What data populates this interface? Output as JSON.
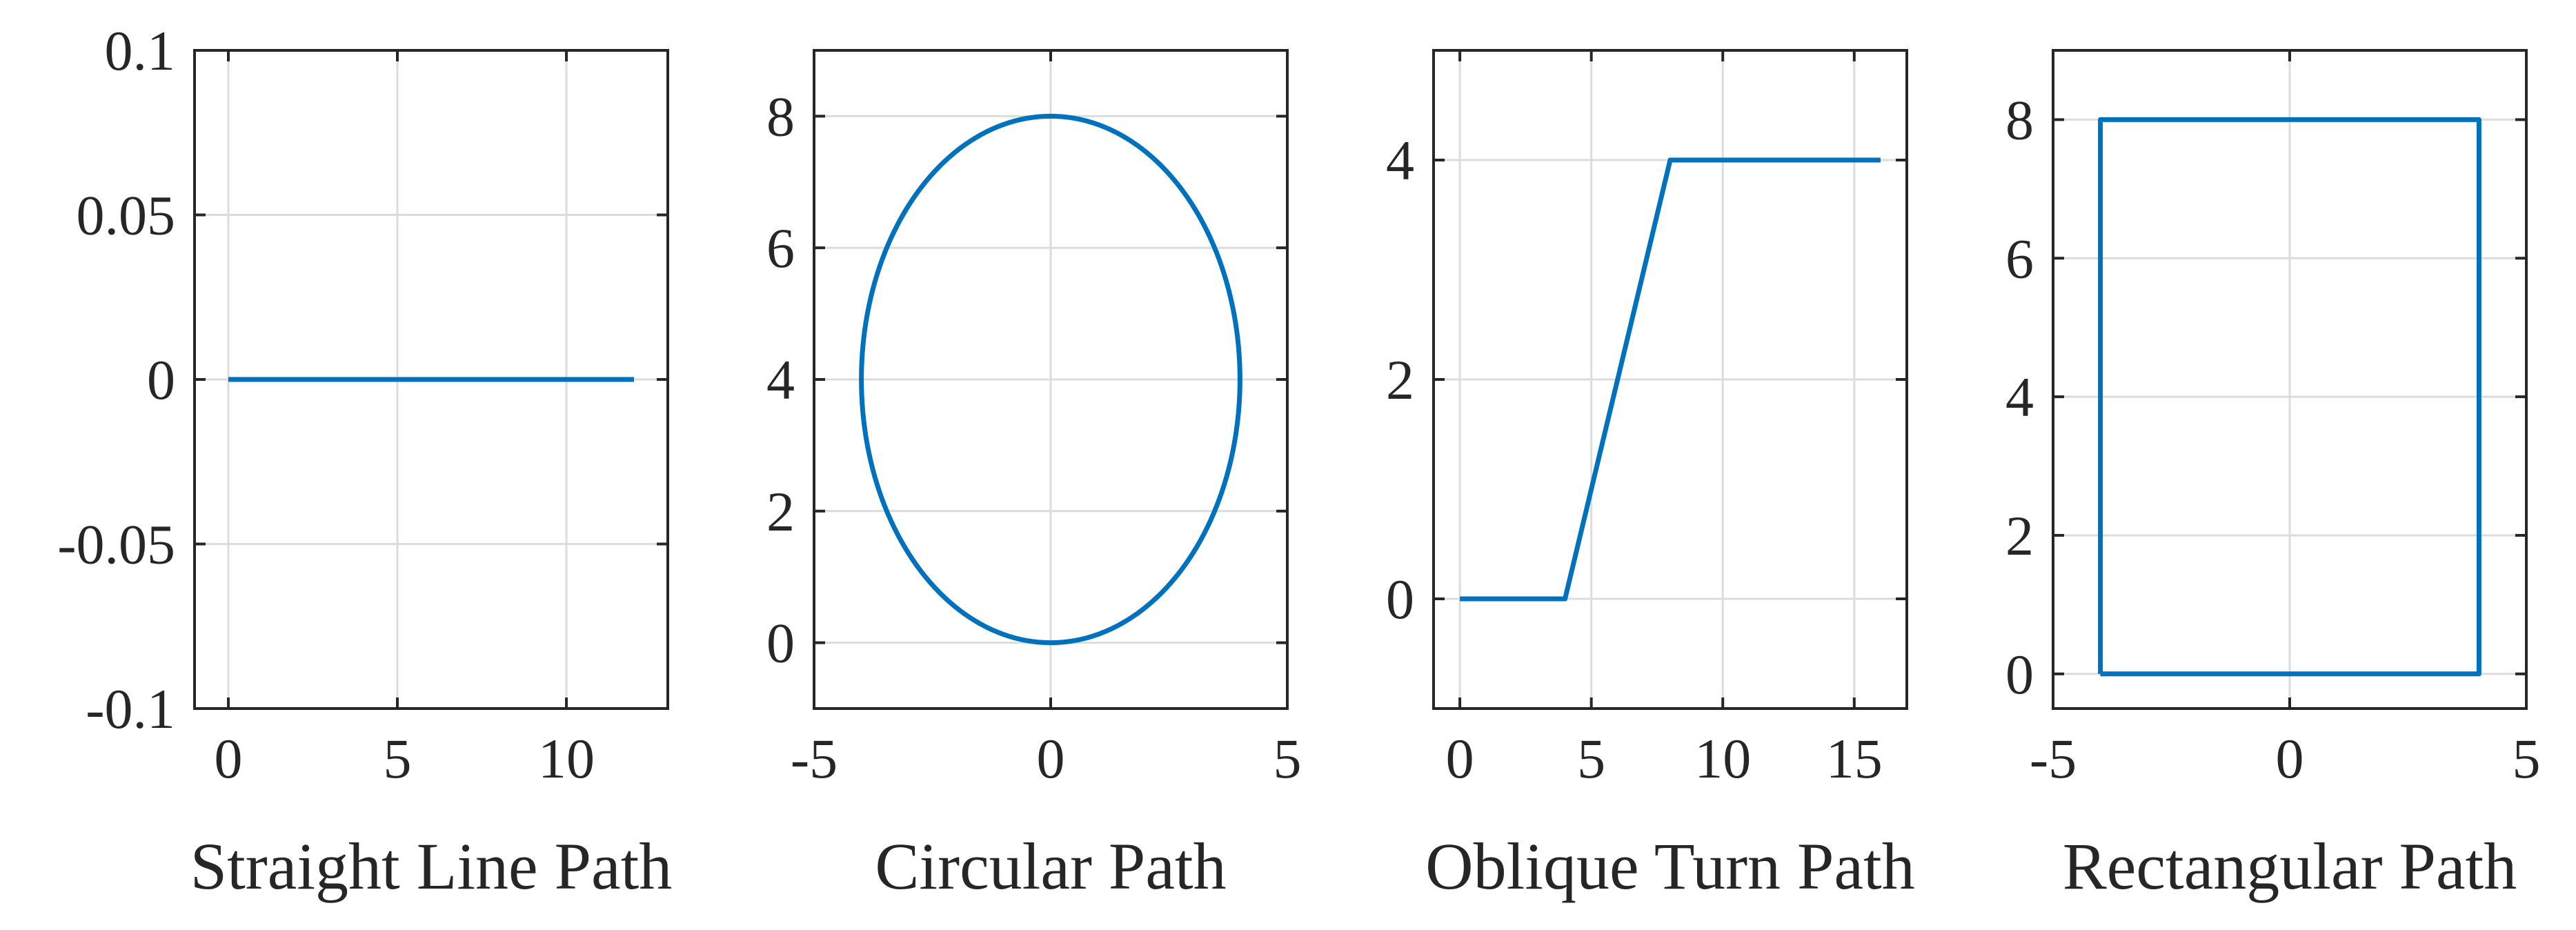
{
  "figure": {
    "background": "#ffffff",
    "line_color": "#0072BD"
  },
  "chart_data": [
    {
      "type": "line",
      "xlabel": "Straight Line Path",
      "ylabel": "",
      "title": "",
      "xlim": [
        -1,
        13
      ],
      "ylim": [
        -0.1,
        0.1
      ],
      "xticks": [
        0,
        5,
        10
      ],
      "xticklabels": [
        "0",
        "5",
        "10"
      ],
      "yticks": [
        -0.1,
        -0.05,
        0,
        0.05,
        0.1
      ],
      "yticklabels": [
        "-0.1",
        "-0.05",
        "0",
        "0.05",
        "0.1"
      ],
      "grid": true,
      "series": [
        {
          "x": [
            0,
            12
          ],
          "y": [
            0,
            0
          ]
        }
      ]
    },
    {
      "type": "line",
      "xlabel": "Circular Path",
      "ylabel": "",
      "title": "",
      "xlim": [
        -5,
        5
      ],
      "ylim": [
        -1,
        9
      ],
      "xticks": [
        -5,
        0,
        5
      ],
      "xticklabels": [
        "-5",
        "0",
        "5"
      ],
      "yticks": [
        0,
        2,
        4,
        6,
        8
      ],
      "yticklabels": [
        "0",
        "2",
        "4",
        "6",
        "8"
      ],
      "grid": true,
      "series": [
        {
          "shape": "circle",
          "center": [
            0,
            4
          ],
          "radius": 4
        }
      ]
    },
    {
      "type": "line",
      "xlabel": "Oblique Turn Path",
      "ylabel": "",
      "title": "",
      "xlim": [
        -1,
        17
      ],
      "ylim": [
        -1,
        5
      ],
      "xticks": [
        0,
        5,
        10,
        15
      ],
      "xticklabels": [
        "0",
        "5",
        "10",
        "15"
      ],
      "yticks": [
        0,
        2,
        4
      ],
      "yticklabels": [
        "0",
        "2",
        "4"
      ],
      "grid": true,
      "series": [
        {
          "x": [
            0,
            4,
            8,
            16
          ],
          "y": [
            0,
            0,
            4,
            4
          ]
        }
      ]
    },
    {
      "type": "line",
      "xlabel": "Rectangular Path",
      "ylabel": "",
      "title": "",
      "xlim": [
        -5,
        5
      ],
      "ylim": [
        -0.5,
        9
      ],
      "xticks": [
        -5,
        0,
        5
      ],
      "xticklabels": [
        "-5",
        "0",
        "5"
      ],
      "yticks": [
        0,
        2,
        4,
        6,
        8
      ],
      "yticklabels": [
        "0",
        "2",
        "4",
        "6",
        "8"
      ],
      "grid": true,
      "series": [
        {
          "x": [
            -4,
            4,
            4,
            -4,
            -4
          ],
          "y": [
            0,
            0,
            8,
            8,
            0
          ]
        }
      ]
    }
  ]
}
